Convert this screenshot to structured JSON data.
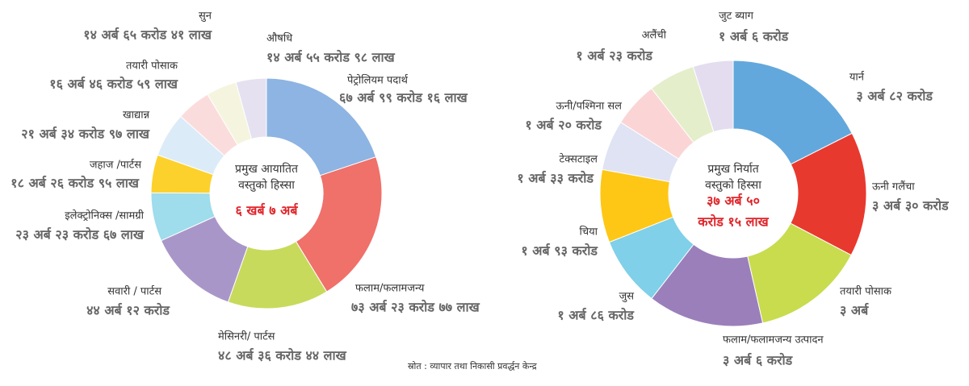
{
  "chart_data": [
    {
      "type": "pie",
      "title": "प्रमुख आयातित वस्तुको हिस्सा",
      "total_label": "६ खर्ब ७ अर्ब",
      "categories": [
        "पेट्रोलियम पदार्थ",
        "फलाम/फलामजन्य",
        "मेसिनरी/ पार्टस",
        "सवारी / पार्टस",
        "इलेक्ट्रोनिक्स /सामग्री",
        "जहाज /पार्टस",
        "खाद्यान्न",
        "तयारी पोसाक",
        "सुन",
        "औषधि"
      ],
      "values": [
        6799.16,
        7323.77,
        4836.44,
        4412,
        2323.67,
        1826.95,
        2134.97,
        1646.59,
        1465.41,
        1455.98
      ],
      "value_labels": [
        "६७ अर्ब ९९ करोड १६ लाख",
        "७३ अर्ब २३ करोड ७७ लाख",
        "४८ अर्ब ३६ करोड ४४ लाख",
        "४४ अर्ब १२ करोड",
        "२३ अर्ब २३ करोड ६७ लाख",
        "१८ अर्ब २६ करोड ९५ लाख",
        "२१ अर्ब ३४ करोड ९७ लाख",
        "१६ अर्ब ४६ करोड ५९ लाख",
        "१४ अर्ब ६५ करोड ४१ लाख",
        "१४ अर्ब ५५ करोड ९८ लाख"
      ],
      "colors": [
        "#8db4e2",
        "#f0706a",
        "#c8da5c",
        "#a996c9",
        "#9fdcec",
        "#fdd12b",
        "#dcebf8",
        "#fbdcdc",
        "#f5f5df",
        "#e6e1f1"
      ]
    },
    {
      "type": "pie",
      "title": "प्रमुख निर्यात वस्तुको हिस्सा",
      "total_label": [
        "३७ अर्ब ५०",
        "करोड १५ लाख"
      ],
      "categories": [
        "यार्न",
        "ऊनी गलैंचा",
        "तयारी पोसाक",
        "फलाम/फलामजन्य उत्पादन",
        "जुस",
        "चिया",
        "टेक्सटाइल",
        "ऊनी/पश्मिना सल",
        "अलैंची",
        "जुट ब्याग"
      ],
      "values": [
        382,
        330,
        300,
        306,
        186,
        193,
        133,
        120,
        123,
        106
      ],
      "value_labels": [
        "३ अर्ब ८२ करोड",
        "३ अर्ब ३० करोड",
        "३ अर्ब",
        "३ अर्ब ६ करोड",
        "१ अर्ब ८६ करोड",
        "१ अर्ब ९३ करोड",
        "१ अर्ब ३३ करोड",
        "१ अर्ब २० करोड",
        "१ अर्ब २३ करोड",
        "१ अर्ब ६ करोड"
      ],
      "colors": [
        "#63a8dc",
        "#e8392e",
        "#c8dc4e",
        "#9b7fbb",
        "#7fd0e8",
        "#fec716",
        "#dfe3f3",
        "#fbd5d5",
        "#e4eecb",
        "#e3ddef"
      ]
    }
  ],
  "source": "स्रोत : व्यापार तथा निकासी प्रवर्द्धन केन्द्र"
}
